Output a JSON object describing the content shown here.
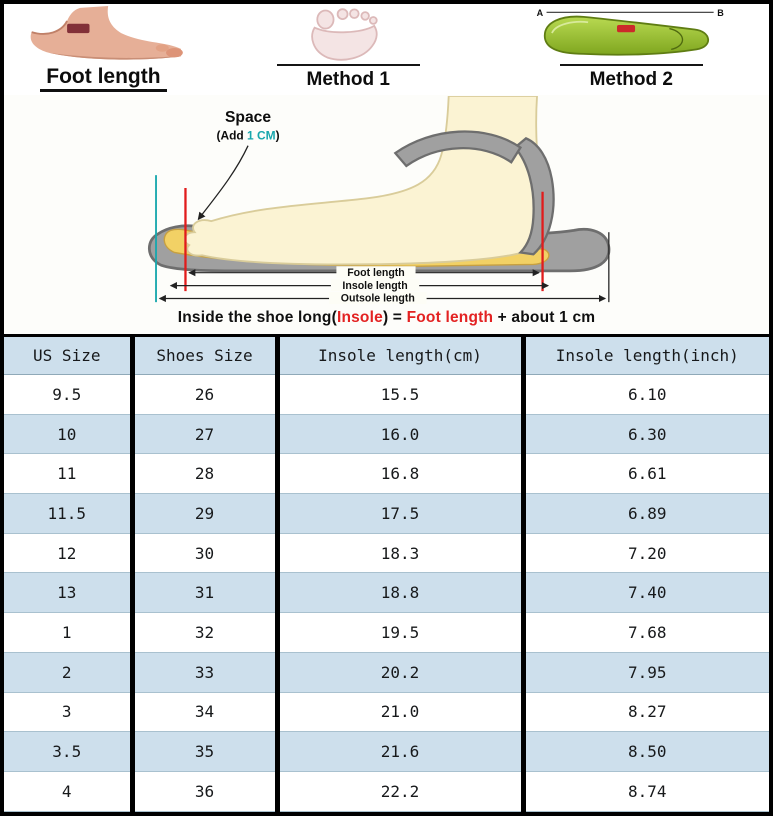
{
  "header_strip": {
    "foot_length_label": "Foot length",
    "method1_label": "Method 1",
    "method2_label": "Method 2",
    "insole_point_a": "A",
    "insole_point_b": "B"
  },
  "diagram": {
    "space_label": "Space",
    "space_note_prefix": "(Add ",
    "space_note_value": "1 CM",
    "space_note_suffix": ")",
    "measurements": {
      "foot": "Foot length",
      "insole": "Insole length",
      "outsole": "Outsole length"
    },
    "formula": {
      "p1": "Inside the shoe long(",
      "p2": "Insole",
      "p3": ") = ",
      "p4": "Foot length",
      "p5": " + about ",
      "p6": "1 cm"
    }
  },
  "chart_data": {
    "type": "table",
    "columns": [
      "US Size",
      "Shoes Size",
      "Insole length(cm)",
      "Insole length(inch)"
    ],
    "rows": [
      [
        "9.5",
        "26",
        "15.5",
        "6.10"
      ],
      [
        "10",
        "27",
        "16.0",
        "6.30"
      ],
      [
        "11",
        "28",
        "16.8",
        "6.61"
      ],
      [
        "11.5",
        "29",
        "17.5",
        "6.89"
      ],
      [
        "12",
        "30",
        "18.3",
        "7.20"
      ],
      [
        "13",
        "31",
        "18.8",
        "7.40"
      ],
      [
        "1",
        "32",
        "19.5",
        "7.68"
      ],
      [
        "2",
        "33",
        "20.2",
        "7.95"
      ],
      [
        "3",
        "34",
        "21.0",
        "8.27"
      ],
      [
        "3.5",
        "35",
        "21.6",
        "8.50"
      ],
      [
        "4",
        "36",
        "22.2",
        "8.74"
      ]
    ]
  },
  "colors": {
    "table_row_alt": "#cddfec",
    "accent_red": "#e32222",
    "accent_teal": "#18a7ad",
    "insole_green": "#8fba2c"
  }
}
